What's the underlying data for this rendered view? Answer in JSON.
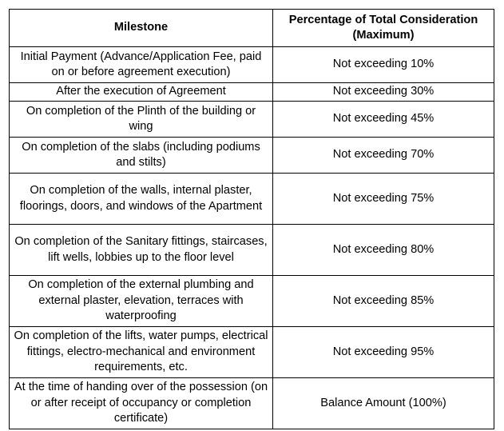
{
  "table": {
    "headers": {
      "milestone": "Milestone",
      "percentage": "Percentage of Total Consideration (Maximum)"
    },
    "rows": [
      {
        "milestone": "Initial Payment (Advance/Application Fee, paid on or before agreement execution)",
        "percentage": "Not exceeding 10%"
      },
      {
        "milestone": "After the execution of Agreement",
        "percentage": "Not exceeding 30%"
      },
      {
        "milestone": "On completion of the Plinth of the building or wing",
        "percentage": "Not exceeding 45%"
      },
      {
        "milestone": "On completion of the slabs (including podiums and stilts)",
        "percentage": "Not exceeding 70%"
      },
      {
        "milestone": "On completion of the walls, internal plaster, floorings, doors, and windows of the Apartment",
        "percentage": "Not exceeding 75%"
      },
      {
        "milestone": "On completion of the Sanitary fittings, staircases, lift wells, lobbies up to the floor level",
        "percentage": "Not exceeding 80%"
      },
      {
        "milestone": "On completion of the external plumbing and external plaster, elevation, terraces with waterproofing",
        "percentage": "Not exceeding 85%"
      },
      {
        "milestone": "On completion of the lifts, water pumps, electrical fittings, electro-mechanical and environment requirements, etc.",
        "percentage": "Not exceeding 95%"
      },
      {
        "milestone": "At the time of handing over of the possession (on or after receipt of occupancy or completion certificate)",
        "percentage": "Balance Amount (100%)"
      }
    ]
  }
}
